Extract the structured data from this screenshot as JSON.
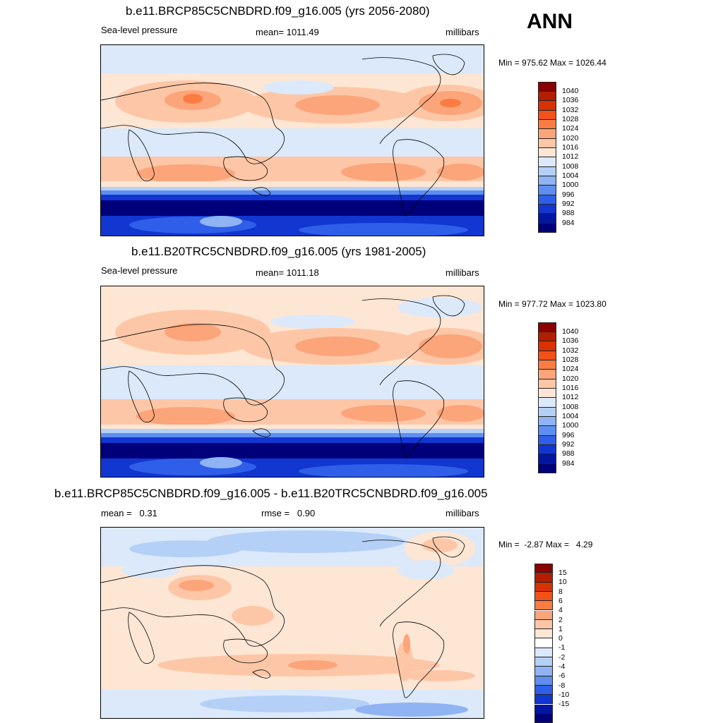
{
  "season_label": "ANN",
  "colors": {
    "slp_scale": [
      "#8b0000",
      "#b41e00",
      "#d93100",
      "#f2511a",
      "#fb7c43",
      "#fca47a",
      "#fdc7a7",
      "#fee6d4",
      "#dbe9fb",
      "#b5d0f7",
      "#8fb3f3",
      "#5d8ef0",
      "#2f5fe9",
      "#1236d0",
      "#0316a1",
      "#00007a"
    ],
    "diff_scale": [
      "#8b0000",
      "#b41e00",
      "#d93100",
      "#f2511a",
      "#fb7c43",
      "#fca47a",
      "#fdc7a7",
      "#fee6d4",
      "#ffffff",
      "#dbe9fb",
      "#b5d0f7",
      "#8fb3f3",
      "#5d8ef0",
      "#2f5fe9",
      "#1236d0",
      "#0316a1",
      "#00007a"
    ]
  },
  "panels": [
    {
      "title": "b.e11.BRCP85C5CNBDRD.f09_g16.005 (yrs 2056-2080)",
      "left_label": "Sea-level pressure",
      "center_label": "mean= 1011.49",
      "units": "millibars",
      "minmax": "Min = 975.62 Max = 1026.44"
    },
    {
      "title": "b.e11.B20TRC5CNBDRD.f09_g16.005 (yrs 1981-2005)",
      "left_label": "Sea-level pressure",
      "center_label": "mean= 1011.18",
      "units": "millibars",
      "minmax": "Min = 977.72 Max = 1023.80"
    },
    {
      "title": "b.e11.BRCP85C5CNBDRD.f09_g16.005 - b.e11.B20TRC5CNBDRD.f09_g16.005",
      "left_label": "mean =   0.31",
      "center_label": "rmse =   0.90",
      "units": "millibars",
      "minmax": "Min =  -2.87 Max =   4.29"
    }
  ],
  "chart_data": [
    {
      "type": "heatmap",
      "title": "b.e11.BRCP85C5CNBDRD.f09_g16.005 (yrs 2056-2080)",
      "variable": "Sea-level pressure",
      "units": "millibars",
      "mean": 1011.49,
      "min": 975.62,
      "max": 1026.44,
      "levels": [
        1040,
        1036,
        1032,
        1028,
        1024,
        1020,
        1016,
        1012,
        1008,
        1004,
        1000,
        996,
        992,
        988,
        984
      ]
    },
    {
      "type": "heatmap",
      "title": "b.e11.B20TRC5CNBDRD.f09_g16.005 (yrs 1981-2005)",
      "variable": "Sea-level pressure",
      "units": "millibars",
      "mean": 1011.18,
      "min": 977.72,
      "max": 1023.8,
      "levels": [
        1040,
        1036,
        1032,
        1028,
        1024,
        1020,
        1016,
        1012,
        1008,
        1004,
        1000,
        996,
        992,
        988,
        984
      ]
    },
    {
      "type": "heatmap",
      "title": "b.e11.BRCP85C5CNBDRD.f09_g16.005 - b.e11.B20TRC5CNBDRD.f09_g16.005",
      "units": "millibars",
      "mean": 0.31,
      "rmse": 0.9,
      "min": -2.87,
      "max": 4.29,
      "levels": [
        15,
        10,
        8,
        6,
        4,
        2,
        1,
        0,
        -1,
        -2,
        -4,
        -6,
        -8,
        -10,
        -15
      ]
    }
  ],
  "colorbars": [
    [
      "1040",
      "1036",
      "1032",
      "1028",
      "1024",
      "1020",
      "1016",
      "1012",
      "1008",
      "1004",
      "1000",
      "996",
      "992",
      "988",
      "984"
    ],
    [
      "1040",
      "1036",
      "1032",
      "1028",
      "1024",
      "1020",
      "1016",
      "1012",
      "1008",
      "1004",
      "1000",
      "996",
      "992",
      "988",
      "984"
    ],
    [
      "15",
      "10",
      "8",
      "6",
      "4",
      "2",
      "1",
      "0",
      "-1",
      "-2",
      "-4",
      "-6",
      "-8",
      "-10",
      "-15"
    ]
  ]
}
